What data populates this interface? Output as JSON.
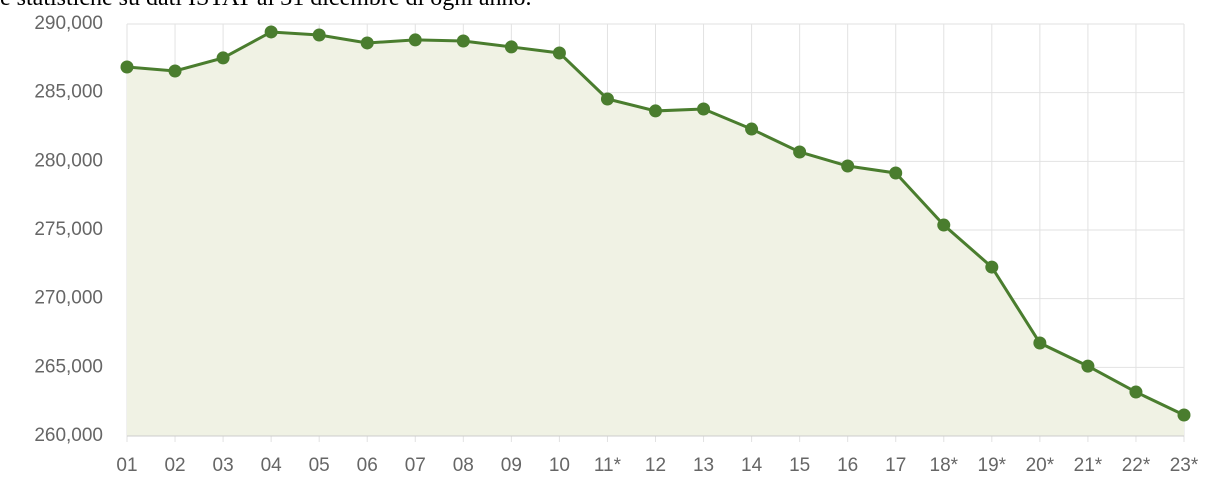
{
  "chart_data": {
    "type": "line",
    "subtitle": "e statistiche su dati ISTAT al 31 dicembre di ogni anno.",
    "categories": [
      "01",
      "02",
      "03",
      "04",
      "05",
      "06",
      "07",
      "08",
      "09",
      "10",
      "11*",
      "12",
      "13",
      "14",
      "15",
      "16",
      "17",
      "18*",
      "19*",
      "20*",
      "21*",
      "22*",
      "23*"
    ],
    "series": [
      {
        "color": "#4a7d2e",
        "fill": "#f0f2e4",
        "values": [
          286870,
          286580,
          287530,
          289420,
          289200,
          288620,
          288840,
          288760,
          288330,
          287890,
          284540,
          283670,
          283810,
          282350,
          280680,
          279660,
          279150,
          275360,
          272300,
          266770,
          265090,
          263200,
          261530
        ]
      }
    ],
    "ylim": [
      260000,
      290000
    ],
    "yticks": [
      {
        "value": 260000,
        "label": "260,000"
      },
      {
        "value": 265000,
        "label": "265,000"
      },
      {
        "value": 270000,
        "label": "270,000"
      },
      {
        "value": 275000,
        "label": "275,000"
      },
      {
        "value": 280000,
        "label": "280,000"
      },
      {
        "value": 285000,
        "label": "285,000"
      },
      {
        "value": 290000,
        "label": "290,000"
      }
    ],
    "grid": true
  }
}
